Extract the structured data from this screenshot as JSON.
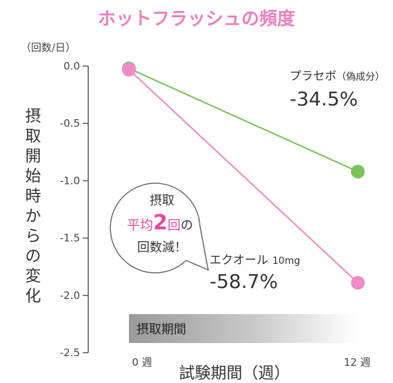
{
  "chart_data": {
    "type": "line",
    "title": "ホットフラッシュの頻度",
    "yunit": "（回数/日）",
    "ylabel": "摂取開始時からの変化",
    "xlabel": "試験期間（週）",
    "ylim": [
      -2.5,
      0.0
    ],
    "yticks": [
      "0.0",
      "-0.5",
      "-1.0",
      "-1.5",
      "-2.0",
      "-2.5"
    ],
    "xticks": [
      "0 週",
      "12 週"
    ],
    "x": [
      0,
      12
    ],
    "series": [
      {
        "name": "プラセボ",
        "name_note": "（偽成分）",
        "percent": "-34.5%",
        "values": [
          -0.02,
          -0.92
        ],
        "color": "#7dc35b"
      },
      {
        "name": "エクオール",
        "name_note": "10mg",
        "percent": "-58.7%",
        "values": [
          -0.03,
          -1.89
        ],
        "color": "#f28ac8"
      }
    ],
    "bubble": {
      "line1": "摂取",
      "line2_a": "平均",
      "line2_num": "2",
      "line2_b": "回",
      "line2_c": "の",
      "line3": "回数減！"
    },
    "period_label": "摂取期間",
    "grid": false
  }
}
